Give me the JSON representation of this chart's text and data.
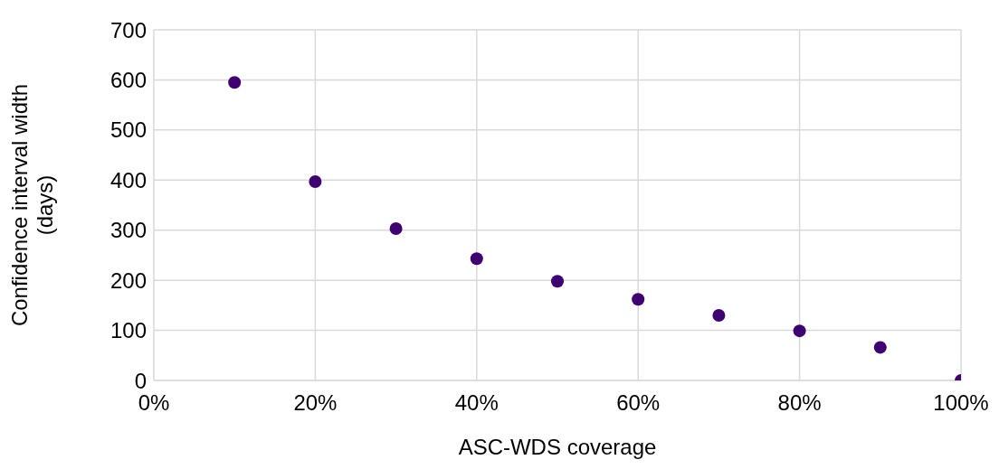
{
  "chart_data": {
    "type": "scatter",
    "xlabel": "ASC-WDS coverage",
    "ylabel": "Confidence interval width (days)",
    "x": [
      10,
      20,
      30,
      40,
      50,
      60,
      70,
      80,
      90,
      100
    ],
    "values": [
      595,
      397,
      303,
      243,
      198,
      162,
      130,
      99,
      66,
      0
    ],
    "color": "#3f0071",
    "marker": "circle",
    "grid": true,
    "legend": false,
    "xlim": [
      0,
      100
    ],
    "xticks": [
      {
        "value": 0,
        "label": "0%"
      },
      {
        "value": 20,
        "label": "20%"
      },
      {
        "value": 40,
        "label": "40%"
      },
      {
        "value": 60,
        "label": "60%"
      },
      {
        "value": 80,
        "label": "80%"
      },
      {
        "value": 100,
        "label": "100%"
      }
    ],
    "ylim": [
      0,
      700
    ],
    "yticks": [
      0,
      100,
      200,
      300,
      400,
      500,
      600,
      700
    ]
  }
}
